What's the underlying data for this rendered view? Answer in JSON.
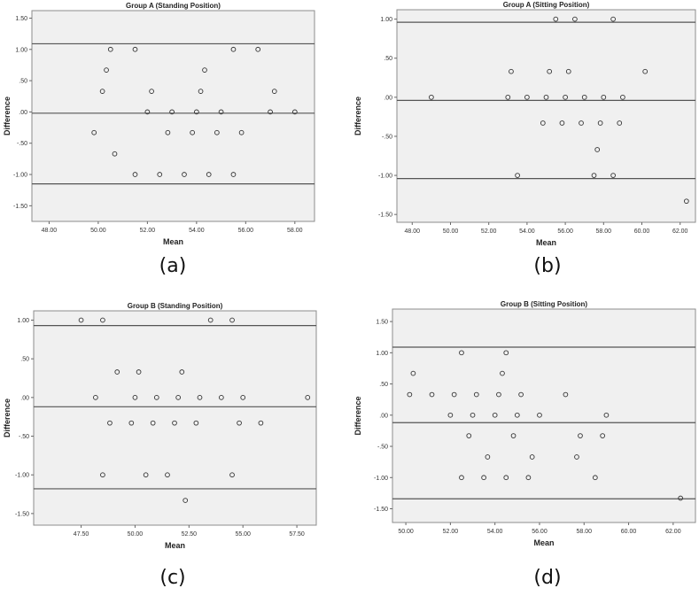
{
  "chart_data": [
    {
      "type": "scatter",
      "panel_label": "(a)",
      "title": "Group A (Standing Position)",
      "xlabel": "Mean",
      "ylabel": "Difference",
      "xlim": [
        47.3,
        58.8
      ],
      "ylim": [
        -1.75,
        1.62
      ],
      "x_ticks": [
        48,
        50,
        52,
        54,
        56,
        58
      ],
      "x_tick_labels": [
        "48.00",
        "50.00",
        "52.00",
        "54.00",
        "56.00",
        "58.00"
      ],
      "y_ticks": [
        1.5,
        1.0,
        0.5,
        0.0,
        -0.5,
        -1.0,
        -1.5
      ],
      "y_tick_labels": [
        "1.50",
        "1.00",
        ".50",
        ".00",
        "-.50",
        "-1.00",
        "-1.50"
      ],
      "reference_lines": [
        1.09,
        -0.02,
        -1.15
      ],
      "points": [
        [
          49.83,
          -0.33
        ],
        [
          50.17,
          0.33
        ],
        [
          50.33,
          0.67
        ],
        [
          50.5,
          1.0
        ],
        [
          50.67,
          -0.67
        ],
        [
          51.5,
          1.0
        ],
        [
          51.5,
          -1.0
        ],
        [
          52.0,
          0.0
        ],
        [
          52.17,
          0.33
        ],
        [
          52.5,
          -1.0
        ],
        [
          52.83,
          -0.33
        ],
        [
          53.0,
          0.0
        ],
        [
          53.5,
          -1.0
        ],
        [
          53.83,
          -0.33
        ],
        [
          54.0,
          0.0
        ],
        [
          54.17,
          0.33
        ],
        [
          54.33,
          0.67
        ],
        [
          54.5,
          -1.0
        ],
        [
          54.83,
          -0.33
        ],
        [
          55.0,
          0.0
        ],
        [
          55.5,
          1.0
        ],
        [
          55.5,
          -1.0
        ],
        [
          55.83,
          -0.33
        ],
        [
          56.5,
          1.0
        ],
        [
          57.0,
          0.0
        ],
        [
          57.17,
          0.33
        ],
        [
          58.0,
          0.0
        ]
      ]
    },
    {
      "type": "scatter",
      "panel_label": "(b)",
      "title": "Group A (Sitting Position)",
      "xlabel": "Mean",
      "ylabel": "Difference",
      "xlim": [
        47.2,
        62.8
      ],
      "ylim": [
        -1.6,
        1.12
      ],
      "x_ticks": [
        48,
        50,
        52,
        54,
        56,
        58,
        60,
        62
      ],
      "x_tick_labels": [
        "48.00",
        "50.00",
        "52.00",
        "54.00",
        "56.00",
        "58.00",
        "60.00",
        "62.00"
      ],
      "y_ticks": [
        1.0,
        0.5,
        0.0,
        -0.5,
        -1.0,
        -1.5
      ],
      "y_tick_labels": [
        "1.00",
        ".50",
        ".00",
        "-.50",
        "-1.00",
        "-1.50"
      ],
      "reference_lines": [
        0.96,
        -0.04,
        -1.04
      ],
      "points": [
        [
          49.0,
          0.0
        ],
        [
          53.0,
          0.0
        ],
        [
          53.17,
          0.33
        ],
        [
          53.5,
          -1.0
        ],
        [
          54.0,
          0.0
        ],
        [
          54.83,
          -0.33
        ],
        [
          55.0,
          0.0
        ],
        [
          55.17,
          0.33
        ],
        [
          55.5,
          1.0
        ],
        [
          55.83,
          -0.33
        ],
        [
          56.0,
          0.0
        ],
        [
          56.17,
          0.33
        ],
        [
          56.5,
          1.0
        ],
        [
          56.83,
          -0.33
        ],
        [
          57.0,
          0.0
        ],
        [
          57.5,
          -1.0
        ],
        [
          57.67,
          -0.67
        ],
        [
          57.83,
          -0.33
        ],
        [
          58.0,
          0.0
        ],
        [
          58.5,
          1.0
        ],
        [
          58.5,
          -1.0
        ],
        [
          58.83,
          -0.33
        ],
        [
          59.0,
          0.0
        ],
        [
          60.17,
          0.33
        ],
        [
          62.33,
          -1.33
        ]
      ]
    },
    {
      "type": "scatter",
      "panel_label": "(c)",
      "title": "Group B (Standing Position)",
      "xlabel": "Mean",
      "ylabel": "Difference",
      "xlim": [
        45.3,
        58.4
      ],
      "ylim": [
        -1.65,
        1.12
      ],
      "x_ticks": [
        47.5,
        50.0,
        52.5,
        55.0,
        57.5
      ],
      "x_tick_labels": [
        "47.50",
        "50.00",
        "52.50",
        "55.00",
        "57.50"
      ],
      "y_ticks": [
        1.0,
        0.5,
        0.0,
        -0.5,
        -1.0,
        -1.5
      ],
      "y_tick_labels": [
        "1.00",
        ".50",
        ".00",
        "-.50",
        "-1.00",
        "-1.50"
      ],
      "reference_lines": [
        0.93,
        -0.12,
        -1.18
      ],
      "points": [
        [
          47.5,
          1.0
        ],
        [
          48.17,
          0.0
        ],
        [
          48.5,
          1.0
        ],
        [
          48.5,
          -1.0
        ],
        [
          48.83,
          -0.33
        ],
        [
          49.17,
          0.33
        ],
        [
          49.83,
          -0.33
        ],
        [
          50.0,
          0.0
        ],
        [
          50.17,
          0.33
        ],
        [
          50.5,
          -1.0
        ],
        [
          50.83,
          -0.33
        ],
        [
          51.0,
          0.0
        ],
        [
          51.5,
          -1.0
        ],
        [
          51.83,
          -0.33
        ],
        [
          52.0,
          0.0
        ],
        [
          52.17,
          0.33
        ],
        [
          52.33,
          -1.33
        ],
        [
          52.83,
          -0.33
        ],
        [
          53.0,
          0.0
        ],
        [
          53.5,
          1.0
        ],
        [
          54.0,
          0.0
        ],
        [
          54.5,
          1.0
        ],
        [
          54.5,
          -1.0
        ],
        [
          54.83,
          -0.33
        ],
        [
          55.0,
          0.0
        ],
        [
          55.83,
          -0.33
        ],
        [
          58.0,
          0.0
        ]
      ]
    },
    {
      "type": "scatter",
      "panel_label": "(d)",
      "title": "Group B (Sitting Position)",
      "xlabel": "Mean",
      "ylabel": "Difference",
      "xlim": [
        49.4,
        63.0
      ],
      "ylim": [
        -1.72,
        1.7
      ],
      "x_ticks": [
        50,
        52,
        54,
        56,
        58,
        60,
        62
      ],
      "x_tick_labels": [
        "50.00",
        "52.00",
        "54.00",
        "56.00",
        "58.00",
        "60.00",
        "62.00"
      ],
      "y_ticks": [
        1.5,
        1.0,
        0.5,
        0.0,
        -0.5,
        -1.0,
        -1.5
      ],
      "y_tick_labels": [
        "1.50",
        "1.00",
        ".50",
        ".00",
        "-.50",
        "-1.00",
        "-1.50"
      ],
      "reference_lines": [
        1.09,
        -0.12,
        -1.34
      ],
      "points": [
        [
          50.17,
          0.33
        ],
        [
          50.33,
          0.67
        ],
        [
          51.17,
          0.33
        ],
        [
          52.0,
          0.0
        ],
        [
          52.17,
          0.33
        ],
        [
          52.5,
          1.0
        ],
        [
          52.5,
          -1.0
        ],
        [
          52.83,
          -0.33
        ],
        [
          53.0,
          0.0
        ],
        [
          53.17,
          0.33
        ],
        [
          53.5,
          -1.0
        ],
        [
          53.67,
          -0.67
        ],
        [
          54.0,
          0.0
        ],
        [
          54.17,
          0.33
        ],
        [
          54.33,
          0.67
        ],
        [
          54.5,
          1.0
        ],
        [
          54.5,
          -1.0
        ],
        [
          54.83,
          -0.33
        ],
        [
          55.0,
          0.0
        ],
        [
          55.17,
          0.33
        ],
        [
          55.5,
          -1.0
        ],
        [
          55.67,
          -0.67
        ],
        [
          56.0,
          0.0
        ],
        [
          57.17,
          0.33
        ],
        [
          57.67,
          -0.67
        ],
        [
          57.83,
          -0.33
        ],
        [
          58.5,
          -1.0
        ],
        [
          58.83,
          -0.33
        ],
        [
          59.0,
          0.0
        ],
        [
          62.33,
          -1.33
        ]
      ]
    }
  ]
}
